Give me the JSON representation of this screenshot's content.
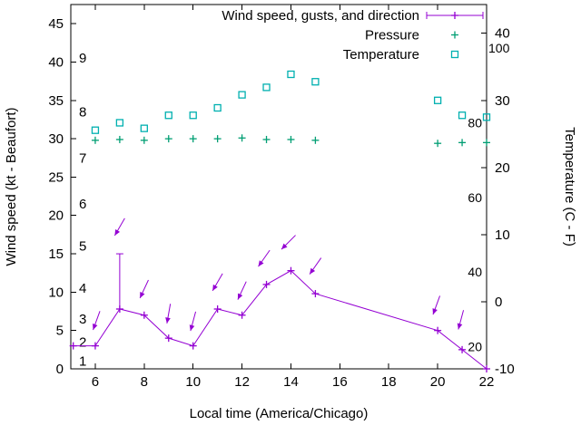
{
  "chart_data": {
    "type": "line",
    "title": "",
    "xlabel": "Local time (America/Chicago)",
    "ylabel": "Wind speed (kt - Beaufort)",
    "y2label": "Temperature (C - F)",
    "x_range": [
      5,
      22
    ],
    "y_range": [
      0,
      47.5
    ],
    "y2_range_celsius": [
      -10,
      44.3
    ],
    "grid": false,
    "legend_position": "top-right-inside",
    "x_ticks": [
      6,
      8,
      10,
      12,
      14,
      16,
      18,
      20,
      22
    ],
    "y_ticks": [
      0,
      5,
      10,
      15,
      20,
      25,
      30,
      35,
      40,
      45
    ],
    "y2_ticks_celsius": [
      -10,
      0,
      10,
      20,
      30,
      40
    ],
    "beaufort_labels": [
      {
        "label": "1",
        "kt": 1
      },
      {
        "label": "2",
        "kt": 3.5
      },
      {
        "label": "3",
        "kt": 6.5
      },
      {
        "label": "4",
        "kt": 10.5
      },
      {
        "label": "5",
        "kt": 16
      },
      {
        "label": "6",
        "kt": 21.5
      },
      {
        "label": "7",
        "kt": 27.5
      },
      {
        "label": "8",
        "kt": 33.5
      },
      {
        "label": "9",
        "kt": 40.5
      }
    ],
    "fahrenheit_labels": [
      20,
      40,
      60,
      80,
      100
    ],
    "legend": [
      {
        "label": "Wind speed, gusts, and direction",
        "sample": "errorbar-line",
        "color": "#9400d3"
      },
      {
        "label": "Pressure",
        "sample": "plus",
        "color": "#009e73"
      },
      {
        "label": "Temperature",
        "sample": "square",
        "color": "#00b0b0"
      }
    ],
    "series": {
      "wind": {
        "name": "Wind speed, gusts, and direction",
        "color": "#9400d3",
        "x": [
          5.1,
          6,
          7,
          8,
          9,
          10,
          11,
          12,
          13,
          14,
          15,
          20,
          21,
          22
        ],
        "kt": [
          3,
          3,
          7.8,
          7,
          4,
          3,
          7.8,
          7,
          11,
          12.8,
          9.8,
          5,
          2.5,
          0
        ]
      },
      "gusts": [
        {
          "x": 7,
          "from_kt": 7.8,
          "to_kt": 15
        }
      ],
      "wind_arrows": [
        {
          "x": 6.05,
          "kt": 6.3,
          "heading_deg": 200
        },
        {
          "x": 7.0,
          "kt": 18.5,
          "heading_deg": 210
        },
        {
          "x": 8.0,
          "kt": 10.4,
          "heading_deg": 205
        },
        {
          "x": 9.0,
          "kt": 7.2,
          "heading_deg": 190
        },
        {
          "x": 10.0,
          "kt": 6.2,
          "heading_deg": 195
        },
        {
          "x": 11.0,
          "kt": 11.3,
          "heading_deg": 210
        },
        {
          "x": 12.0,
          "kt": 10.2,
          "heading_deg": 205
        },
        {
          "x": 12.9,
          "kt": 14.4,
          "heading_deg": 215
        },
        {
          "x": 13.9,
          "kt": 16.5,
          "heading_deg": 225
        },
        {
          "x": 15.0,
          "kt": 13.4,
          "heading_deg": 215
        },
        {
          "x": 19.95,
          "kt": 8.3,
          "heading_deg": 200
        },
        {
          "x": 20.95,
          "kt": 6.4,
          "heading_deg": 195
        }
      ],
      "pressure": {
        "name": "Pressure",
        "color": "#009e73",
        "x": [
          6,
          7,
          8,
          9,
          10,
          11,
          12,
          13,
          14,
          15,
          20,
          21,
          22
        ],
        "values_left_axis": [
          29.8,
          29.9,
          29.8,
          30.0,
          30.0,
          30.0,
          30.1,
          29.9,
          29.9,
          29.8,
          29.4,
          29.5,
          29.5
        ]
      },
      "temperature": {
        "name": "Temperature",
        "color": "#00b0b0",
        "x": [
          6,
          7,
          8,
          9,
          10,
          11,
          12,
          13,
          14,
          15,
          20,
          21,
          22
        ],
        "f": [
          78,
          80,
          78.5,
          82,
          82,
          84,
          87.5,
          89.5,
          93,
          91,
          86,
          82,
          81.5
        ]
      }
    }
  }
}
